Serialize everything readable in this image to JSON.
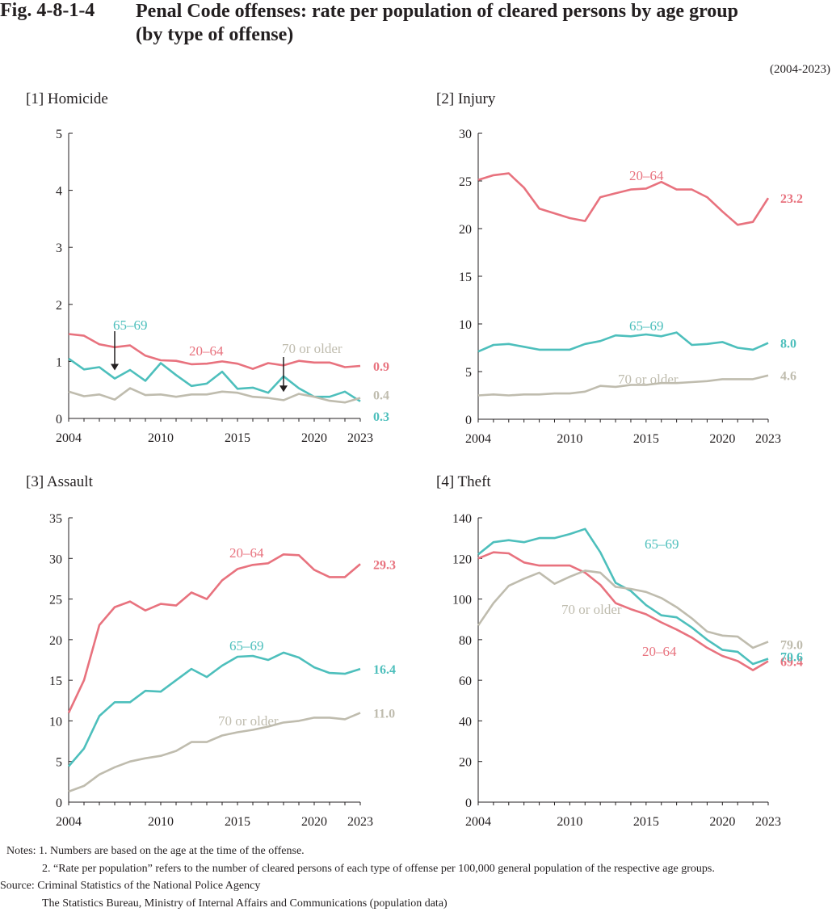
{
  "figure": {
    "number": "Fig. 4-8-1-4",
    "title_line1": "Penal Code offenses: rate per population of cleared persons by age group",
    "title_line2": "(by type of offense)",
    "period": "(2004-2023)"
  },
  "colors": {
    "age_20_64": "#e8727e",
    "age_65_69": "#4dbfbc",
    "age_70_plus": "#bfbcae",
    "axis": "#231f20"
  },
  "chart_data": [
    {
      "type": "line",
      "title": "[1] Homicide",
      "x": [
        2004,
        2005,
        2006,
        2007,
        2008,
        2009,
        2010,
        2011,
        2012,
        2013,
        2014,
        2015,
        2016,
        2017,
        2018,
        2019,
        2020,
        2021,
        2022,
        2023
      ],
      "x_ticks": [
        "2004",
        "2010",
        "2015",
        "2020",
        "2023"
      ],
      "ylim": [
        0,
        5
      ],
      "y_ticks": [
        "0",
        "1",
        "2",
        "3",
        "4",
        "5"
      ],
      "series": [
        {
          "name": "20–64",
          "values": [
            1.48,
            1.45,
            1.3,
            1.25,
            1.28,
            1.1,
            1.02,
            1.01,
            0.95,
            0.96,
            1.0,
            0.96,
            0.87,
            0.97,
            0.93,
            1.01,
            0.98,
            0.98,
            0.9,
            0.92
          ],
          "end_label": "0.9"
        },
        {
          "name": "65–69",
          "values": [
            1.05,
            0.86,
            0.9,
            0.7,
            0.85,
            0.66,
            0.97,
            0.76,
            0.57,
            0.61,
            0.82,
            0.52,
            0.54,
            0.45,
            0.74,
            0.53,
            0.38,
            0.38,
            0.47,
            0.3
          ],
          "end_label": "0.3"
        },
        {
          "name": "70 or older",
          "values": [
            0.47,
            0.39,
            0.42,
            0.33,
            0.53,
            0.41,
            0.42,
            0.38,
            0.42,
            0.42,
            0.47,
            0.45,
            0.38,
            0.36,
            0.32,
            0.43,
            0.38,
            0.31,
            0.28,
            0.36
          ],
          "end_label": "0.4"
        }
      ],
      "annotation_years": [
        2007,
        2018
      ]
    },
    {
      "type": "line",
      "title": "[2] Injury",
      "x": [
        2004,
        2005,
        2006,
        2007,
        2008,
        2009,
        2010,
        2011,
        2012,
        2013,
        2014,
        2015,
        2016,
        2017,
        2018,
        2019,
        2020,
        2021,
        2022,
        2023
      ],
      "x_ticks": [
        "2004",
        "2010",
        "2015",
        "2020",
        "2023"
      ],
      "ylim": [
        0,
        30
      ],
      "y_ticks": [
        "0",
        "5",
        "10",
        "15",
        "20",
        "25",
        "30"
      ],
      "series": [
        {
          "name": "20–64",
          "values": [
            25.1,
            25.6,
            25.8,
            24.3,
            22.1,
            21.6,
            21.1,
            20.8,
            23.3,
            23.7,
            24.1,
            24.2,
            24.9,
            24.1,
            24.1,
            23.3,
            21.8,
            20.4,
            20.7,
            23.2
          ],
          "end_label": "23.2"
        },
        {
          "name": "65–69",
          "values": [
            7.1,
            7.8,
            7.9,
            7.6,
            7.3,
            7.3,
            7.3,
            7.9,
            8.2,
            8.8,
            8.7,
            8.9,
            8.7,
            9.1,
            7.8,
            7.9,
            8.1,
            7.5,
            7.3,
            8.0
          ],
          "end_label": "8.0"
        },
        {
          "name": "70 or older",
          "values": [
            2.5,
            2.6,
            2.5,
            2.6,
            2.6,
            2.7,
            2.7,
            2.9,
            3.5,
            3.4,
            3.6,
            3.6,
            3.8,
            3.8,
            3.9,
            4.0,
            4.2,
            4.2,
            4.2,
            4.6
          ],
          "end_label": "4.6"
        }
      ]
    },
    {
      "type": "line",
      "title": "[3] Assault",
      "x": [
        2004,
        2005,
        2006,
        2007,
        2008,
        2009,
        2010,
        2011,
        2012,
        2013,
        2014,
        2015,
        2016,
        2017,
        2018,
        2019,
        2020,
        2021,
        2022,
        2023
      ],
      "x_ticks": [
        "2004",
        "2010",
        "2015",
        "2020",
        "2023"
      ],
      "ylim": [
        0,
        35
      ],
      "y_ticks": [
        "0",
        "5",
        "10",
        "15",
        "20",
        "25",
        "30",
        "35"
      ],
      "series": [
        {
          "name": "20–64",
          "values": [
            11.0,
            15.0,
            21.8,
            24.0,
            24.7,
            23.6,
            24.4,
            24.2,
            25.8,
            25.0,
            27.3,
            28.7,
            29.2,
            29.4,
            30.5,
            30.4,
            28.6,
            27.7,
            27.7,
            29.3
          ],
          "end_label": "29.3"
        },
        {
          "name": "65–69",
          "values": [
            4.4,
            6.6,
            10.6,
            12.3,
            12.3,
            13.7,
            13.6,
            15.0,
            16.4,
            15.4,
            16.8,
            17.9,
            18.0,
            17.5,
            18.4,
            17.8,
            16.6,
            15.9,
            15.8,
            16.4
          ],
          "end_label": "16.4"
        },
        {
          "name": "70 or older",
          "values": [
            1.3,
            2.0,
            3.4,
            4.3,
            5.0,
            5.4,
            5.7,
            6.3,
            7.4,
            7.4,
            8.2,
            8.6,
            8.9,
            9.3,
            9.8,
            10.0,
            10.4,
            10.4,
            10.2,
            11.0
          ],
          "end_label": "11.0"
        }
      ]
    },
    {
      "type": "line",
      "title": "[4] Theft",
      "x": [
        2004,
        2005,
        2006,
        2007,
        2008,
        2009,
        2010,
        2011,
        2012,
        2013,
        2014,
        2015,
        2016,
        2017,
        2018,
        2019,
        2020,
        2021,
        2022,
        2023
      ],
      "x_ticks": [
        "2004",
        "2010",
        "2015",
        "2020",
        "2023"
      ],
      "ylim": [
        0,
        140
      ],
      "y_ticks": [
        "0",
        "20",
        "40",
        "60",
        "80",
        "100",
        "120",
        "140"
      ],
      "series": [
        {
          "name": "20–64",
          "values": [
            120.0,
            123.0,
            122.5,
            118.0,
            116.5,
            116.5,
            116.5,
            113.0,
            107.0,
            98.0,
            95.0,
            92.5,
            88.5,
            85.0,
            81.0,
            76.0,
            72.0,
            69.5,
            65.0,
            69.4
          ],
          "end_label": "69.4"
        },
        {
          "name": "65–69",
          "values": [
            122.0,
            128.0,
            129.0,
            128.0,
            130.0,
            130.0,
            132.0,
            134.5,
            123.0,
            108.0,
            104.0,
            97.0,
            92.0,
            91.0,
            86.0,
            80.0,
            75.0,
            74.0,
            68.0,
            70.6
          ],
          "end_label": "70.6"
        },
        {
          "name": "70 or older",
          "values": [
            87.0,
            98.0,
            106.5,
            110.0,
            113.0,
            107.5,
            111.0,
            114.0,
            113.0,
            106.0,
            105.0,
            103.5,
            100.5,
            96.0,
            90.5,
            84.0,
            82.0,
            81.5,
            76.0,
            79.0
          ],
          "end_label": "79.0"
        }
      ]
    }
  ],
  "notes": {
    "line1": "Notes: 1. Numbers are based on the age at the time of the offense.",
    "line2": "2. “Rate per population” refers to the number of cleared persons of each type of offense per 100,000 general population of the respective age groups.",
    "line3": "Source: Criminal Statistics of the National Police Agency",
    "line4": "The Statistics Bureau, Ministry of Internal Affairs and Communications (population data)"
  }
}
